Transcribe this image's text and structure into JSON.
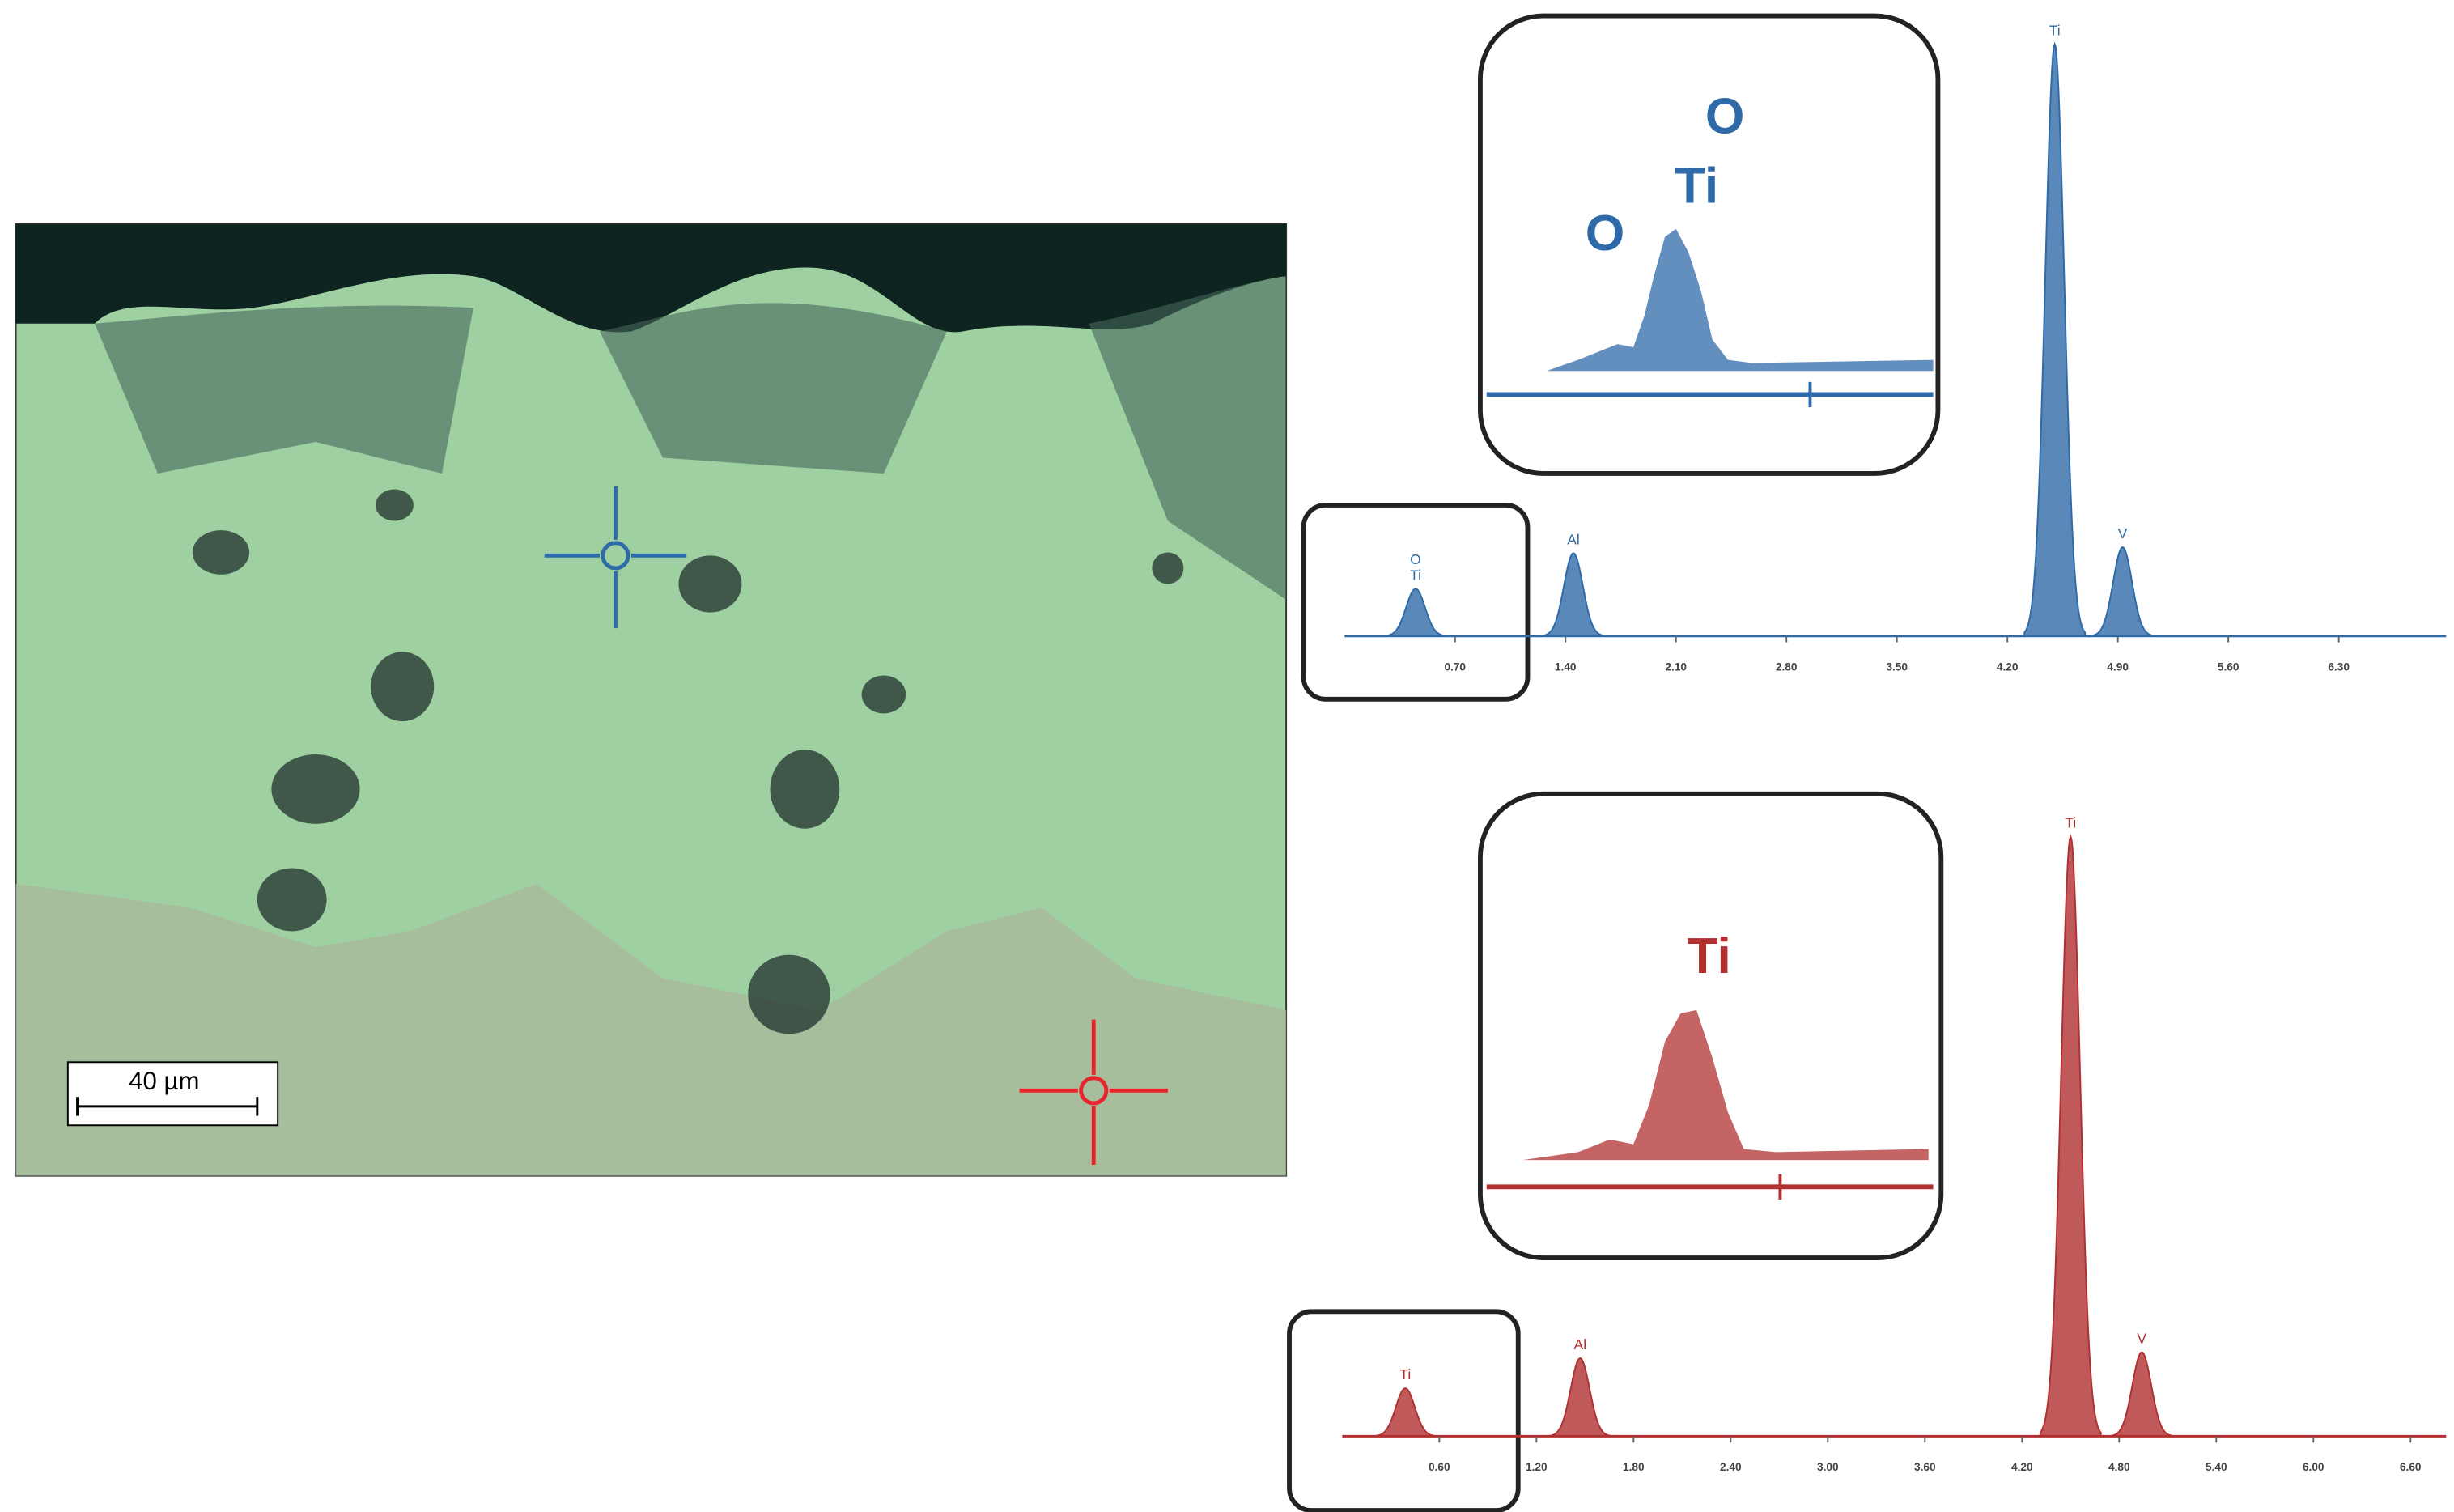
{
  "micrograph": {
    "scale_bar": "40 µm"
  },
  "chart_data": [
    {
      "type": "spectrum",
      "color": "#2f6aa8",
      "x": [
        0.45,
        1.45,
        4.5,
        4.93
      ],
      "values": [
        8,
        14,
        100,
        15
      ],
      "peak_labels": [
        [
          "O",
          "Ti"
        ],
        [
          "Al"
        ],
        [
          "Ti"
        ],
        [
          "V"
        ]
      ],
      "inset_labels": [
        "O",
        "Ti",
        "O"
      ],
      "xlim": [
        0,
        6.98
      ],
      "ylim": [
        0,
        100
      ],
      "xticks": [
        {
          "value": 0.7,
          "label": "0.70"
        },
        {
          "value": 1.4,
          "label": "1.40"
        },
        {
          "value": 2.1,
          "label": "2.10"
        },
        {
          "value": 2.8,
          "label": "2.80"
        },
        {
          "value": 3.5,
          "label": "3.50"
        },
        {
          "value": 4.2,
          "label": "4.20"
        },
        {
          "value": 4.9,
          "label": "4.90"
        },
        {
          "value": 5.6,
          "label": "5.60"
        },
        {
          "value": 6.3,
          "label": "6.30"
        }
      ]
    },
    {
      "type": "spectrum",
      "color": "#b03030",
      "x": [
        0.39,
        1.47,
        4.5,
        4.94
      ],
      "values": [
        8,
        13,
        100,
        14
      ],
      "peak_labels": [
        [
          "Ti"
        ],
        [
          "Al"
        ],
        [
          "Ti"
        ],
        [
          "V"
        ]
      ],
      "inset_labels": [
        "Ti"
      ],
      "xlim": [
        0,
        6.82
      ],
      "ylim": [
        0,
        100
      ],
      "xticks": [
        {
          "value": 0.6,
          "label": "0.60"
        },
        {
          "value": 1.2,
          "label": "1.20"
        },
        {
          "value": 1.8,
          "label": "1.80"
        },
        {
          "value": 2.4,
          "label": "2.40"
        },
        {
          "value": 3.0,
          "label": "3.00"
        },
        {
          "value": 3.6,
          "label": "3.60"
        },
        {
          "value": 4.2,
          "label": "4.20"
        },
        {
          "value": 4.8,
          "label": "4.80"
        },
        {
          "value": 5.4,
          "label": "5.40"
        },
        {
          "value": 6.0,
          "label": "6.00"
        },
        {
          "value": 6.6,
          "label": "6.60"
        }
      ]
    }
  ]
}
